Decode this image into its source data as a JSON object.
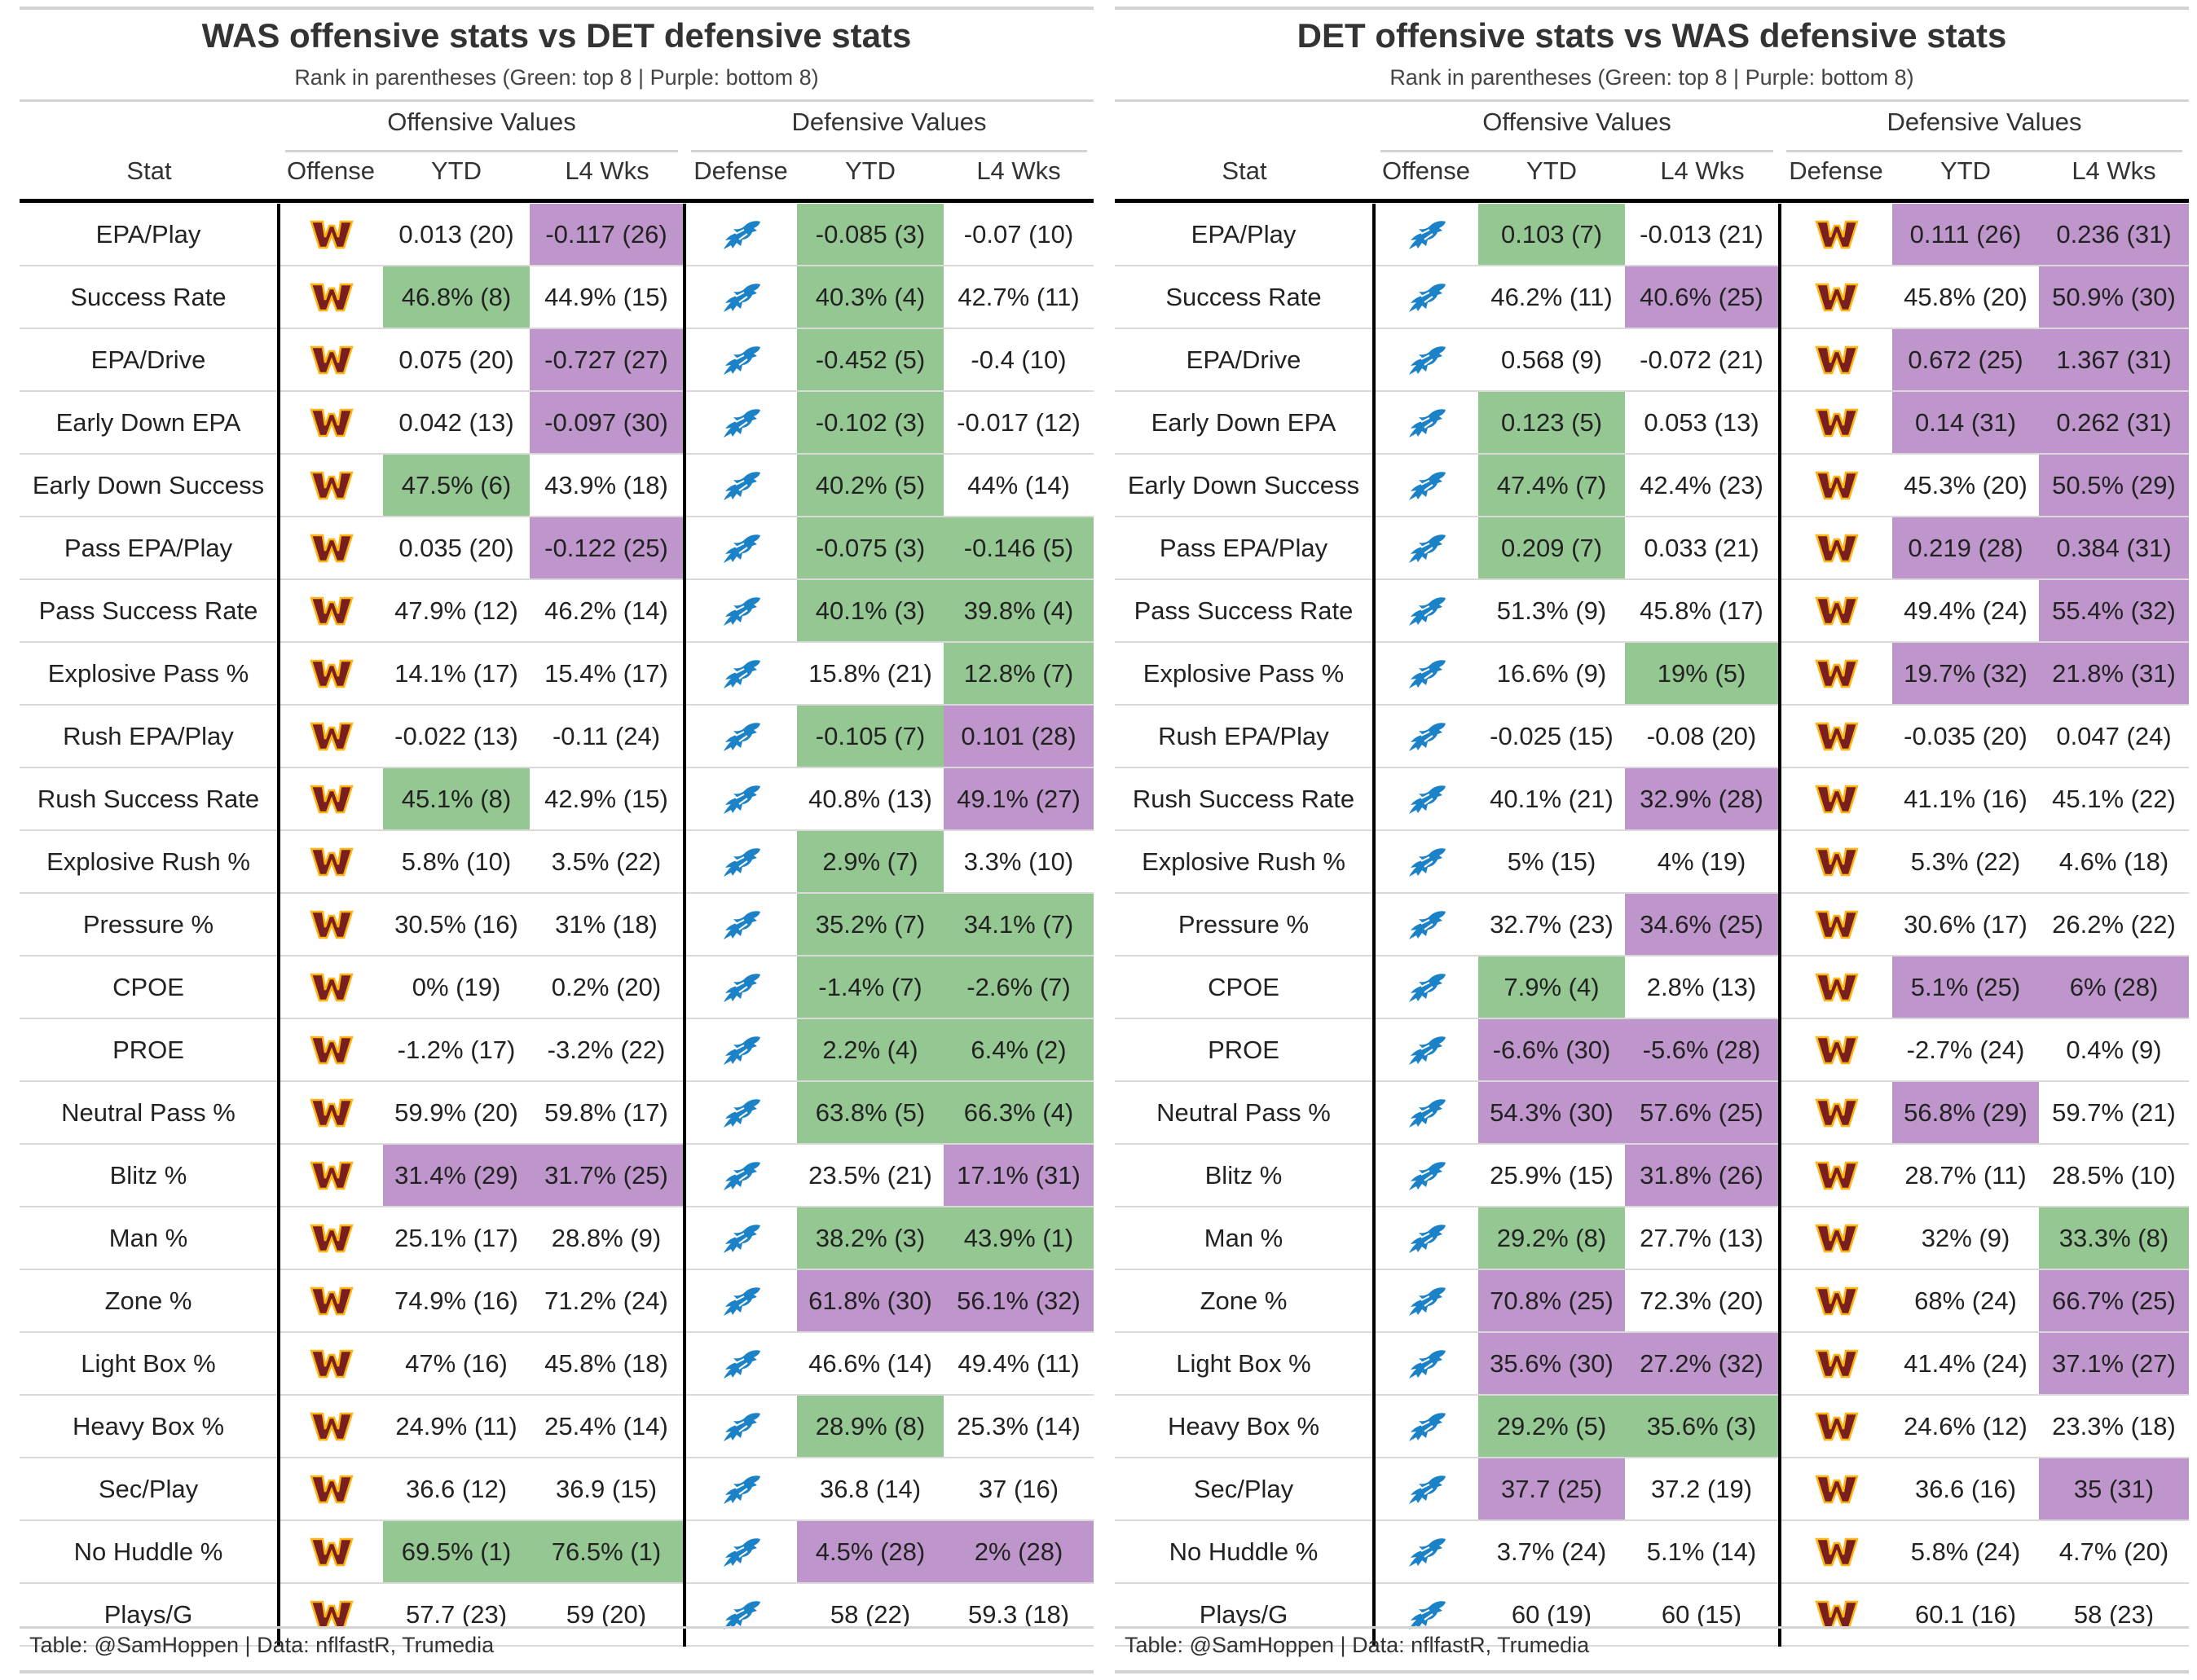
{
  "colors": {
    "good": "#94c792",
    "bad": "#be96cc",
    "was_logo": "#7a1f1f",
    "was_logo_outline": "#ffb612",
    "det_logo": "#1b82c7"
  },
  "icons": {
    "was": "commanders-logo-icon",
    "det": "lions-logo-icon"
  },
  "footer": "Table: @SamHoppen | Data: nflfastR, Trumedia",
  "headers": {
    "offensive_values": "Offensive Values",
    "defensive_values": "Defensive Values",
    "stat": "Stat",
    "offense": "Offense",
    "defense": "Defense",
    "ytd": "YTD",
    "l4": "L4 Wks"
  },
  "panels": [
    {
      "title": "WAS offensive stats vs DET defensive stats",
      "subtitle": "Rank in parentheses (Green: top 8 | Purple: bottom 8)",
      "offense_team": "was",
      "defense_team": "det",
      "rows": [
        [
          "EPA/Play",
          [
            "0.013 (20)",
            ""
          ],
          [
            "-0.117 (26)",
            "bad"
          ],
          [
            "-0.085 (3)",
            "good"
          ],
          [
            "-0.07 (10)",
            ""
          ]
        ],
        [
          "Success Rate",
          [
            "46.8% (8)",
            "good"
          ],
          [
            "44.9% (15)",
            ""
          ],
          [
            "40.3% (4)",
            "good"
          ],
          [
            "42.7% (11)",
            ""
          ]
        ],
        [
          "EPA/Drive",
          [
            "0.075 (20)",
            ""
          ],
          [
            "-0.727 (27)",
            "bad"
          ],
          [
            "-0.452 (5)",
            "good"
          ],
          [
            "-0.4 (10)",
            ""
          ]
        ],
        [
          "Early Down EPA",
          [
            "0.042 (13)",
            ""
          ],
          [
            "-0.097 (30)",
            "bad"
          ],
          [
            "-0.102 (3)",
            "good"
          ],
          [
            "-0.017 (12)",
            ""
          ]
        ],
        [
          "Early Down Success",
          [
            "47.5% (6)",
            "good"
          ],
          [
            "43.9% (18)",
            ""
          ],
          [
            "40.2% (5)",
            "good"
          ],
          [
            "44% (14)",
            ""
          ]
        ],
        [
          "Pass EPA/Play",
          [
            "0.035 (20)",
            ""
          ],
          [
            "-0.122 (25)",
            "bad"
          ],
          [
            "-0.075 (3)",
            "good"
          ],
          [
            "-0.146 (5)",
            "good"
          ]
        ],
        [
          "Pass Success Rate",
          [
            "47.9% (12)",
            ""
          ],
          [
            "46.2% (14)",
            ""
          ],
          [
            "40.1% (3)",
            "good"
          ],
          [
            "39.8% (4)",
            "good"
          ]
        ],
        [
          "Explosive Pass %",
          [
            "14.1% (17)",
            ""
          ],
          [
            "15.4% (17)",
            ""
          ],
          [
            "15.8% (21)",
            ""
          ],
          [
            "12.8% (7)",
            "good"
          ]
        ],
        [
          "Rush EPA/Play",
          [
            "-0.022 (13)",
            ""
          ],
          [
            "-0.11 (24)",
            ""
          ],
          [
            "-0.105 (7)",
            "good"
          ],
          [
            "0.101 (28)",
            "bad"
          ]
        ],
        [
          "Rush Success Rate",
          [
            "45.1% (8)",
            "good"
          ],
          [
            "42.9% (15)",
            ""
          ],
          [
            "40.8% (13)",
            ""
          ],
          [
            "49.1% (27)",
            "bad"
          ]
        ],
        [
          "Explosive Rush %",
          [
            "5.8% (10)",
            ""
          ],
          [
            "3.5% (22)",
            ""
          ],
          [
            "2.9% (7)",
            "good"
          ],
          [
            "3.3% (10)",
            ""
          ]
        ],
        [
          "Pressure %",
          [
            "30.5% (16)",
            ""
          ],
          [
            "31% (18)",
            ""
          ],
          [
            "35.2% (7)",
            "good"
          ],
          [
            "34.1% (7)",
            "good"
          ]
        ],
        [
          "CPOE",
          [
            "0% (19)",
            ""
          ],
          [
            "0.2% (20)",
            ""
          ],
          [
            "-1.4% (7)",
            "good"
          ],
          [
            "-2.6% (7)",
            "good"
          ]
        ],
        [
          "PROE",
          [
            "-1.2% (17)",
            ""
          ],
          [
            "-3.2% (22)",
            ""
          ],
          [
            "2.2% (4)",
            "good"
          ],
          [
            "6.4% (2)",
            "good"
          ]
        ],
        [
          "Neutral Pass %",
          [
            "59.9% (20)",
            ""
          ],
          [
            "59.8% (17)",
            ""
          ],
          [
            "63.8% (5)",
            "good"
          ],
          [
            "66.3% (4)",
            "good"
          ]
        ],
        [
          "Blitz %",
          [
            "31.4% (29)",
            "bad"
          ],
          [
            "31.7% (25)",
            "bad"
          ],
          [
            "23.5% (21)",
            ""
          ],
          [
            "17.1% (31)",
            "bad"
          ]
        ],
        [
          "Man %",
          [
            "25.1% (17)",
            ""
          ],
          [
            "28.8% (9)",
            ""
          ],
          [
            "38.2% (3)",
            "good"
          ],
          [
            "43.9% (1)",
            "good"
          ]
        ],
        [
          "Zone %",
          [
            "74.9% (16)",
            ""
          ],
          [
            "71.2% (24)",
            ""
          ],
          [
            "61.8% (30)",
            "bad"
          ],
          [
            "56.1% (32)",
            "bad"
          ]
        ],
        [
          "Light Box %",
          [
            "47% (16)",
            ""
          ],
          [
            "45.8% (18)",
            ""
          ],
          [
            "46.6% (14)",
            ""
          ],
          [
            "49.4% (11)",
            ""
          ]
        ],
        [
          "Heavy Box %",
          [
            "24.9% (11)",
            ""
          ],
          [
            "25.4% (14)",
            ""
          ],
          [
            "28.9% (8)",
            "good"
          ],
          [
            "25.3% (14)",
            ""
          ]
        ],
        [
          "Sec/Play",
          [
            "36.6 (12)",
            ""
          ],
          [
            "36.9 (15)",
            ""
          ],
          [
            "36.8 (14)",
            ""
          ],
          [
            "37 (16)",
            ""
          ]
        ],
        [
          "No Huddle %",
          [
            "69.5% (1)",
            "good"
          ],
          [
            "76.5% (1)",
            "good"
          ],
          [
            "4.5% (28)",
            "bad"
          ],
          [
            "2% (28)",
            "bad"
          ]
        ],
        [
          "Plays/G",
          [
            "57.7 (23)",
            ""
          ],
          [
            "59 (20)",
            ""
          ],
          [
            "58 (22)",
            ""
          ],
          [
            "59.3 (18)",
            ""
          ]
        ]
      ]
    },
    {
      "title": "DET offensive stats vs WAS defensive stats",
      "subtitle": "Rank in parentheses (Green: top 8 | Purple: bottom 8)",
      "offense_team": "det",
      "defense_team": "was",
      "rows": [
        [
          "EPA/Play",
          [
            "0.103 (7)",
            "good"
          ],
          [
            "-0.013 (21)",
            ""
          ],
          [
            "0.111 (26)",
            "bad"
          ],
          [
            "0.236 (31)",
            "bad"
          ]
        ],
        [
          "Success Rate",
          [
            "46.2% (11)",
            ""
          ],
          [
            "40.6% (25)",
            "bad"
          ],
          [
            "45.8% (20)",
            ""
          ],
          [
            "50.9% (30)",
            "bad"
          ]
        ],
        [
          "EPA/Drive",
          [
            "0.568 (9)",
            ""
          ],
          [
            "-0.072 (21)",
            ""
          ],
          [
            "0.672 (25)",
            "bad"
          ],
          [
            "1.367 (31)",
            "bad"
          ]
        ],
        [
          "Early Down EPA",
          [
            "0.123 (5)",
            "good"
          ],
          [
            "0.053 (13)",
            ""
          ],
          [
            "0.14 (31)",
            "bad"
          ],
          [
            "0.262 (31)",
            "bad"
          ]
        ],
        [
          "Early Down Success",
          [
            "47.4% (7)",
            "good"
          ],
          [
            "42.4% (23)",
            ""
          ],
          [
            "45.3% (20)",
            ""
          ],
          [
            "50.5% (29)",
            "bad"
          ]
        ],
        [
          "Pass EPA/Play",
          [
            "0.209 (7)",
            "good"
          ],
          [
            "0.033 (21)",
            ""
          ],
          [
            "0.219 (28)",
            "bad"
          ],
          [
            "0.384 (31)",
            "bad"
          ]
        ],
        [
          "Pass Success Rate",
          [
            "51.3% (9)",
            ""
          ],
          [
            "45.8% (17)",
            ""
          ],
          [
            "49.4% (24)",
            ""
          ],
          [
            "55.4% (32)",
            "bad"
          ]
        ],
        [
          "Explosive Pass %",
          [
            "16.6% (9)",
            ""
          ],
          [
            "19% (5)",
            "good"
          ],
          [
            "19.7% (32)",
            "bad"
          ],
          [
            "21.8% (31)",
            "bad"
          ]
        ],
        [
          "Rush EPA/Play",
          [
            "-0.025 (15)",
            ""
          ],
          [
            "-0.08 (20)",
            ""
          ],
          [
            "-0.035 (20)",
            ""
          ],
          [
            "0.047 (24)",
            ""
          ]
        ],
        [
          "Rush Success Rate",
          [
            "40.1% (21)",
            ""
          ],
          [
            "32.9% (28)",
            "bad"
          ],
          [
            "41.1% (16)",
            ""
          ],
          [
            "45.1% (22)",
            ""
          ]
        ],
        [
          "Explosive Rush %",
          [
            "5% (15)",
            ""
          ],
          [
            "4% (19)",
            ""
          ],
          [
            "5.3% (22)",
            ""
          ],
          [
            "4.6% (18)",
            ""
          ]
        ],
        [
          "Pressure %",
          [
            "32.7% (23)",
            ""
          ],
          [
            "34.6% (25)",
            "bad"
          ],
          [
            "30.6% (17)",
            ""
          ],
          [
            "26.2% (22)",
            ""
          ]
        ],
        [
          "CPOE",
          [
            "7.9% (4)",
            "good"
          ],
          [
            "2.8% (13)",
            ""
          ],
          [
            "5.1% (25)",
            "bad"
          ],
          [
            "6% (28)",
            "bad"
          ]
        ],
        [
          "PROE",
          [
            "-6.6% (30)",
            "bad"
          ],
          [
            "-5.6% (28)",
            "bad"
          ],
          [
            "-2.7% (24)",
            ""
          ],
          [
            "0.4% (9)",
            ""
          ]
        ],
        [
          "Neutral Pass %",
          [
            "54.3% (30)",
            "bad"
          ],
          [
            "57.6% (25)",
            "bad"
          ],
          [
            "56.8% (29)",
            "bad"
          ],
          [
            "59.7% (21)",
            ""
          ]
        ],
        [
          "Blitz %",
          [
            "25.9% (15)",
            ""
          ],
          [
            "31.8% (26)",
            "bad"
          ],
          [
            "28.7% (11)",
            ""
          ],
          [
            "28.5% (10)",
            ""
          ]
        ],
        [
          "Man %",
          [
            "29.2% (8)",
            "good"
          ],
          [
            "27.7% (13)",
            ""
          ],
          [
            "32% (9)",
            ""
          ],
          [
            "33.3% (8)",
            "good"
          ]
        ],
        [
          "Zone %",
          [
            "70.8% (25)",
            "bad"
          ],
          [
            "72.3% (20)",
            ""
          ],
          [
            "68% (24)",
            ""
          ],
          [
            "66.7% (25)",
            "bad"
          ]
        ],
        [
          "Light Box %",
          [
            "35.6% (30)",
            "bad"
          ],
          [
            "27.2% (32)",
            "bad"
          ],
          [
            "41.4% (24)",
            ""
          ],
          [
            "37.1% (27)",
            "bad"
          ]
        ],
        [
          "Heavy Box %",
          [
            "29.2% (5)",
            "good"
          ],
          [
            "35.6% (3)",
            "good"
          ],
          [
            "24.6% (12)",
            ""
          ],
          [
            "23.3% (18)",
            ""
          ]
        ],
        [
          "Sec/Play",
          [
            "37.7 (25)",
            "bad"
          ],
          [
            "37.2 (19)",
            ""
          ],
          [
            "36.6 (16)",
            ""
          ],
          [
            "35 (31)",
            "bad"
          ]
        ],
        [
          "No Huddle %",
          [
            "3.7% (24)",
            ""
          ],
          [
            "5.1% (14)",
            ""
          ],
          [
            "5.8% (24)",
            ""
          ],
          [
            "4.7% (20)",
            ""
          ]
        ],
        [
          "Plays/G",
          [
            "60 (19)",
            ""
          ],
          [
            "60 (15)",
            ""
          ],
          [
            "60.1 (16)",
            ""
          ],
          [
            "58 (23)",
            ""
          ]
        ]
      ]
    }
  ]
}
